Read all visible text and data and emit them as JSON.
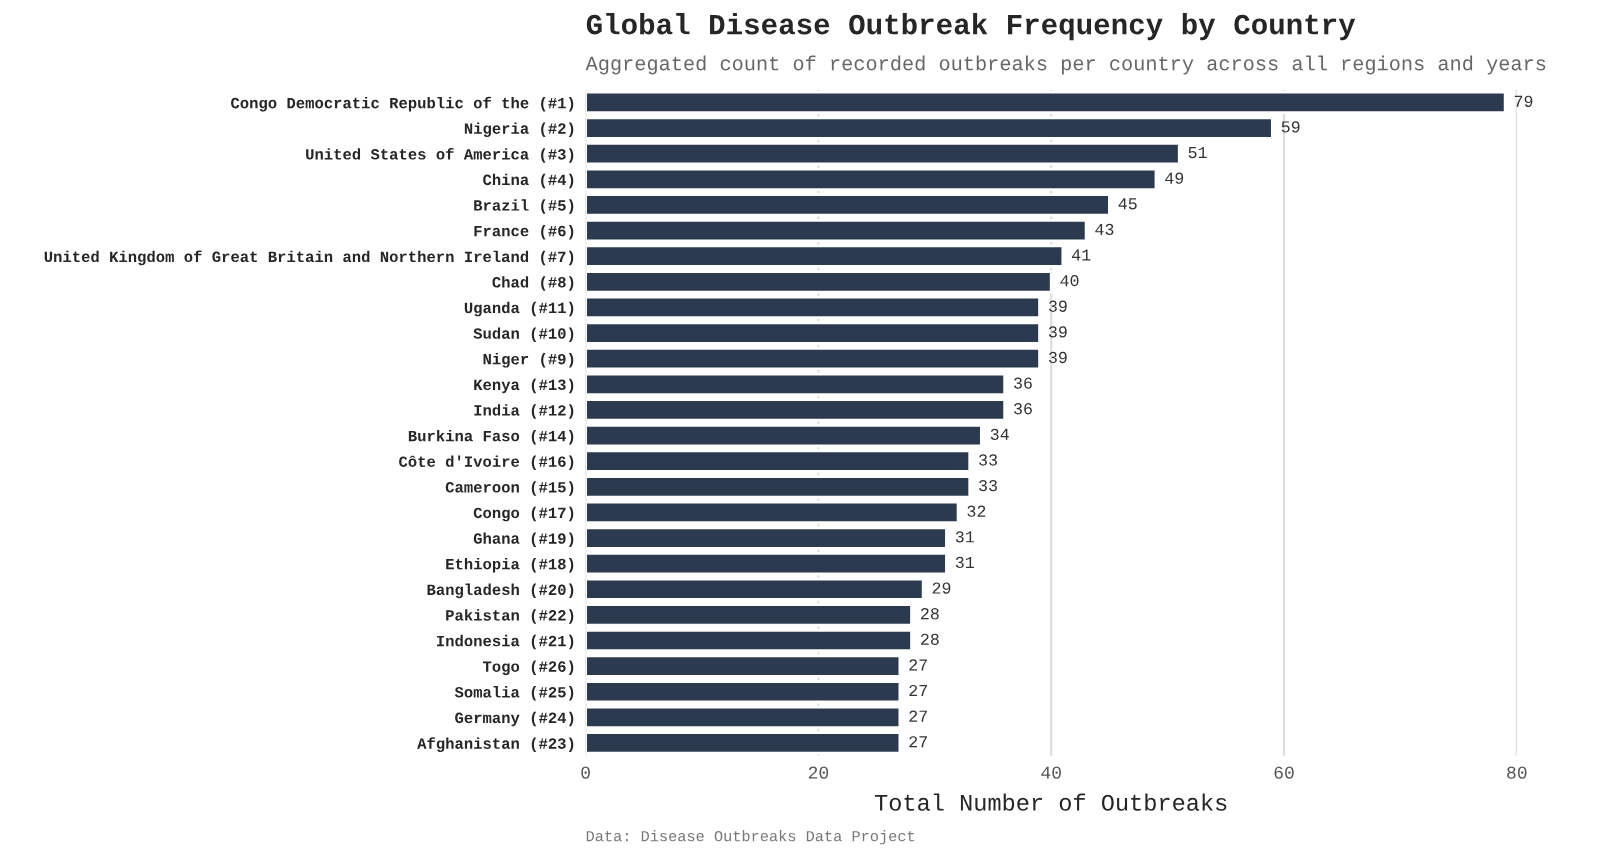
{
  "chart_data": {
    "type": "bar",
    "orientation": "horizontal",
    "title": "Global Disease Outbreak Frequency by Country",
    "subtitle": "Aggregated count of recorded outbreaks per country across all regions and years",
    "xlabel": "Total Number of Outbreaks",
    "annotations": [
      "Data: Disease Outbreaks Data Project"
    ],
    "categories": [
      "Congo Democratic Republic of the (#1)",
      "Nigeria (#2)",
      "United States of America (#3)",
      "China (#4)",
      "Brazil (#5)",
      "France (#6)",
      "United Kingdom of Great Britain and Northern Ireland (#7)",
      "Chad (#8)",
      "Uganda (#11)",
      "Sudan (#10)",
      "Niger (#9)",
      "Kenya (#13)",
      "India (#12)",
      "Burkina Faso (#14)",
      "Côte d'Ivoire (#16)",
      "Cameroon (#15)",
      "Congo (#17)",
      "Ghana (#19)",
      "Ethiopia (#18)",
      "Bangladesh (#20)",
      "Pakistan (#22)",
      "Indonesia (#21)",
      "Togo (#26)",
      "Somalia (#25)",
      "Germany (#24)",
      "Afghanistan (#23)"
    ],
    "values": [
      79,
      59,
      51,
      49,
      45,
      43,
      41,
      40,
      39,
      39,
      39,
      36,
      36,
      34,
      33,
      33,
      32,
      31,
      31,
      29,
      28,
      28,
      27,
      27,
      27,
      27
    ],
    "color": "#2b3a4f",
    "xlim": [
      0,
      80
    ],
    "xticks": [
      0,
      20,
      40,
      60,
      80
    ],
    "grid": "x",
    "data_labels": true,
    "legend": false
  }
}
